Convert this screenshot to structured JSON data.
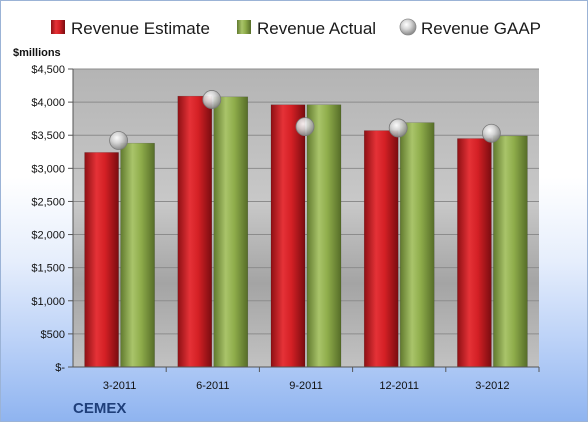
{
  "chart_data": {
    "type": "bar",
    "unit_label": "$millions",
    "company": "CEMEX",
    "categories": [
      "3-2011",
      "6-2011",
      "9-2011",
      "12-2011",
      "3-2012"
    ],
    "series": [
      {
        "name": "Revenue Estimate",
        "type": "bar",
        "color": "#d42025",
        "values": [
          3240,
          4090,
          3960,
          3570,
          3450
        ]
      },
      {
        "name": "Revenue Actual",
        "type": "bar",
        "color": "#8fad4b",
        "values": [
          3380,
          4080,
          3960,
          3690,
          3490
        ]
      },
      {
        "name": "Revenue GAAP",
        "type": "marker",
        "color": "#c0c0c0",
        "values": [
          3420,
          4040,
          3630,
          3610,
          3530
        ]
      }
    ],
    "yticks": [
      "$-",
      "$500",
      "$1,000",
      "$1,500",
      "$2,000",
      "$2,500",
      "$3,000",
      "$3,500",
      "$4,000",
      "$4,500"
    ],
    "ylim": [
      0,
      4500
    ],
    "grid": true,
    "legend_position": "top"
  }
}
